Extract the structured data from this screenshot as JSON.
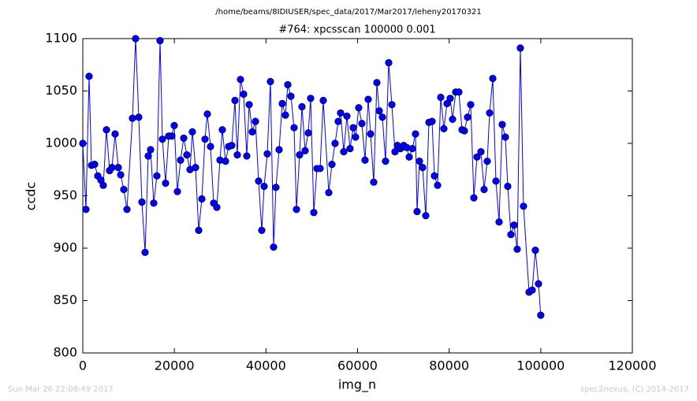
{
  "chart_data": {
    "type": "line",
    "header": "/home/beams/8IDIUSER/spec_data/2017/Mar2017/leheny20170321",
    "title": "#764: xpcsscan 100000 0.001",
    "xlabel": "img_n",
    "ylabel": "ccdc",
    "footer_left": "Sun Mar 26 22:08:49 2017",
    "footer_right": "spec2nexus, (C) 2014-2017",
    "xlim": [
      0,
      120000
    ],
    "ylim": [
      800,
      1100
    ],
    "xticks": [
      0,
      20000,
      40000,
      60000,
      80000,
      100000,
      120000
    ],
    "yticks": [
      800,
      850,
      900,
      950,
      1000,
      1050,
      1100
    ],
    "x": [
      0,
      689,
      1377,
      1894,
      2582,
      3271,
      3960,
      4476,
      5165,
      5853,
      6370,
      7059,
      7747,
      8264,
      8952,
      9641,
      10846,
      11535,
      12223,
      12912,
      13601,
      14289,
      14806,
      15494,
      16183,
      16872,
      17388,
      18077,
      18765,
      19454,
      19971,
      20659,
      21348,
      22036,
      22725,
      23414,
      23930,
      24619,
      25308,
      25996,
      26685,
      27201,
      27890,
      28579,
      29267,
      29956,
      30472,
      31161,
      31850,
      32538,
      33227,
      33743,
      34432,
      35121,
      35809,
      36326,
      37014,
      37703,
      38392,
      39080,
      39597,
      40285,
      40974,
      41663,
      42179,
      42868,
      43556,
      44245,
      44762,
      45450,
      46139,
      46655,
      47344,
      47861,
      48549,
      49238,
      49754,
      50443,
      51132,
      51820,
      52509,
      53714,
      54403,
      55091,
      55780,
      56296,
      56985,
      57674,
      58362,
      59051,
      59567,
      60256,
      60945,
      61633,
      62322,
      62838,
      63527,
      64216,
      64732,
      65421,
      66109,
      66798,
      67487,
      68175,
      68692,
      69380,
      70069,
      70758,
      71274,
      71963,
      72651,
      72996,
      73512,
      74201,
      74890,
      75578,
      76267,
      76783,
      77472,
      78161,
      78849,
      79538,
      80226,
      80743,
      81432,
      82120,
      82809,
      83325,
      84014,
      84703,
      85391,
      86080,
      86941,
      87629,
      88318,
      88834,
      89523,
      90212,
      90900,
      91589,
      92277,
      92794,
      93483,
      94171,
      94860,
      95548,
      96237,
      97442,
      98131,
      98820,
      99508,
      100000
    ],
    "series": [
      {
        "name": "ccdc",
        "color": "#0000ff",
        "values": [
          1000,
          937,
          1064,
          979,
          980,
          969,
          965,
          960,
          1013,
          974,
          977,
          1009,
          977,
          970,
          956,
          937,
          1024,
          1100,
          1025,
          944,
          896,
          988,
          994,
          943,
          969,
          1098,
          1004,
          962,
          1007,
          1007,
          1017,
          954,
          984,
          1005,
          989,
          975,
          1011,
          977,
          917,
          947,
          1004,
          1028,
          997,
          943,
          939,
          984,
          1013,
          983,
          997,
          998,
          1041,
          989,
          1061,
          1047,
          988,
          1037,
          1011,
          1021,
          964,
          917,
          959,
          990,
          1059,
          901,
          958,
          994,
          1038,
          1027,
          1056,
          1045,
          1015,
          937,
          989,
          1035,
          993,
          1010,
          1043,
          934,
          976,
          976,
          1041,
          953,
          980,
          1000,
          1021,
          1029,
          992,
          1026,
          995,
          1015,
          1006,
          1034,
          1019,
          984,
          1042,
          1009,
          963,
          1058,
          1031,
          1025,
          983,
          1077,
          1037,
          992,
          998,
          995,
          998,
          996,
          987,
          995,
          1009,
          935,
          983,
          977,
          931,
          1020,
          1021,
          969,
          960,
          1044,
          1014,
          1038,
          1043,
          1023,
          1049,
          1049,
          1013,
          1012,
          1025,
          1037,
          948,
          987,
          992,
          956,
          983,
          1029,
          1062,
          964,
          925,
          1018,
          1006,
          959,
          913,
          922,
          899,
          1091,
          940,
          858,
          860,
          898,
          866,
          836
        ]
      }
    ]
  }
}
